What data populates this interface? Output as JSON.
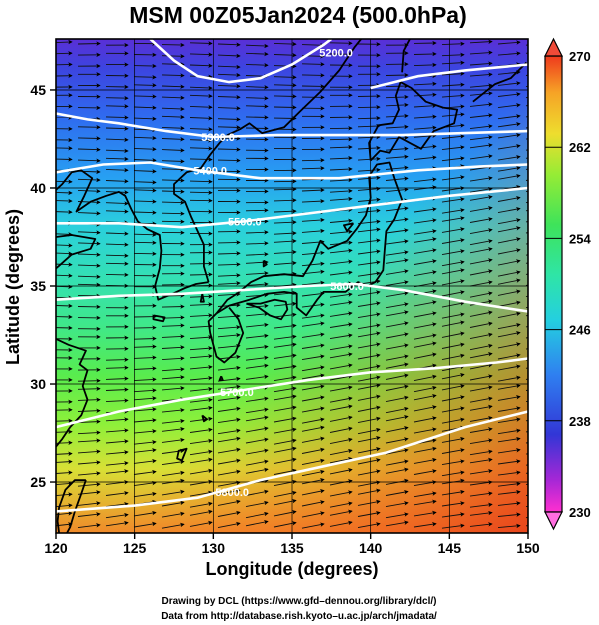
{
  "title": "MSM 00Z05Jan2024 (500.0hPa)",
  "xlabel": "Longitude (degrees)",
  "ylabel": "Latitude  (degrees)",
  "footer": {
    "line1": "Drawing by DCL (https://www.gfd–dennou.org/library/dcl/)",
    "line2": "Data from http://database.rish.kyoto–u.ac.jp/arch/jmadata/"
  },
  "chart_data": {
    "type": "heatmap",
    "xlim": [
      120,
      150
    ],
    "ylim": [
      22.4,
      47.6
    ],
    "x_ticks": [
      "120",
      "125",
      "130",
      "135",
      "140",
      "145",
      "150"
    ],
    "y_ticks": [
      "25",
      "30",
      "35",
      "40",
      "45"
    ],
    "colorbar": {
      "range": [
        230,
        270
      ],
      "tick_labels": [
        "270",
        "262",
        "254",
        "246",
        "238",
        "230"
      ]
    },
    "contours": [
      {
        "label": "5200.0",
        "points": [
          [
            126.0,
            47.6
          ],
          [
            127.5,
            46.5
          ],
          [
            129.0,
            45.7
          ],
          [
            131.0,
            45.4
          ],
          [
            133.0,
            45.6
          ],
          [
            135.0,
            46.3
          ],
          [
            137.0,
            47.3
          ],
          [
            137.5,
            47.6
          ]
        ],
        "label_at": [
          137.8,
          46.9
        ]
      },
      {
        "label": "5200.0",
        "points": [
          [
            140.0,
            45.1
          ],
          [
            143.0,
            45.7
          ],
          [
            146.0,
            46.0
          ],
          [
            150.0,
            46.3
          ]
        ]
      },
      {
        "label": "5300.0",
        "points": [
          [
            120.0,
            43.8
          ],
          [
            122.0,
            43.5
          ],
          [
            124.0,
            43.3
          ],
          [
            127.0,
            42.9
          ],
          [
            130.0,
            42.6
          ],
          [
            134.0,
            42.7
          ],
          [
            138.0,
            42.7
          ],
          [
            142.0,
            42.7
          ],
          [
            146.0,
            42.8
          ],
          [
            150.0,
            42.9
          ]
        ],
        "label_at": [
          130.3,
          42.6
        ]
      },
      {
        "label": "5400.0",
        "points": [
          [
            120.0,
            40.8
          ],
          [
            123.0,
            41.2
          ],
          [
            126.0,
            41.3
          ],
          [
            129.0,
            40.9
          ],
          [
            133.0,
            40.5
          ],
          [
            138.0,
            40.5
          ],
          [
            143.0,
            40.9
          ],
          [
            147.0,
            41.1
          ],
          [
            150.0,
            41.2
          ]
        ],
        "label_at": [
          129.8,
          40.9
        ]
      },
      {
        "label": "5500.0",
        "points": [
          [
            120.0,
            38.2
          ],
          [
            124.0,
            38.2
          ],
          [
            128.0,
            38.0
          ],
          [
            132.0,
            38.3
          ],
          [
            136.0,
            38.7
          ],
          [
            140.0,
            39.1
          ],
          [
            145.0,
            39.6
          ],
          [
            150.0,
            40.0
          ]
        ],
        "label_at": [
          132.0,
          38.3
        ]
      },
      {
        "label": "5600.0",
        "points": [
          [
            120.0,
            34.3
          ],
          [
            124.0,
            34.5
          ],
          [
            128.0,
            34.6
          ],
          [
            132.0,
            34.8
          ],
          [
            136.0,
            35.0
          ],
          [
            139.0,
            35.1
          ],
          [
            142.0,
            34.8
          ],
          [
            146.0,
            34.2
          ],
          [
            150.0,
            33.7
          ]
        ],
        "label_at": [
          138.5,
          35.0
        ]
      },
      {
        "label": "5700.0",
        "points": [
          [
            120.0,
            27.8
          ],
          [
            124.0,
            28.6
          ],
          [
            128.0,
            29.2
          ],
          [
            132.0,
            29.7
          ],
          [
            136.0,
            30.2
          ],
          [
            140.0,
            30.6
          ],
          [
            144.0,
            30.8
          ],
          [
            148.0,
            31.1
          ],
          [
            150.0,
            31.3
          ]
        ],
        "label_at": [
          131.5,
          29.6
        ]
      },
      {
        "label": "5800.0",
        "points": [
          [
            120.0,
            23.5
          ],
          [
            125.0,
            23.8
          ],
          [
            129.0,
            24.2
          ],
          [
            133.0,
            25.1
          ],
          [
            137.0,
            25.8
          ],
          [
            141.0,
            26.5
          ],
          [
            146.0,
            27.8
          ],
          [
            150.0,
            28.6
          ]
        ],
        "label_at": [
          131.2,
          24.5
        ]
      }
    ],
    "coastline": [
      [
        [
          130.2,
          33.6
        ],
        [
          131.0,
          34.0
        ],
        [
          132.3,
          34.3
        ],
        [
          133.4,
          34.6
        ],
        [
          134.5,
          34.7
        ],
        [
          135.3,
          34.6
        ],
        [
          135.3,
          33.9
        ],
        [
          135.9,
          33.5
        ],
        [
          136.6,
          34.3
        ],
        [
          137.0,
          34.7
        ],
        [
          138.4,
          34.7
        ],
        [
          139.2,
          35.2
        ],
        [
          139.8,
          35.0
        ],
        [
          140.3,
          35.2
        ],
        [
          140.8,
          35.8
        ],
        [
          140.9,
          36.8
        ],
        [
          141.0,
          37.8
        ],
        [
          141.5,
          38.4
        ],
        [
          142.0,
          39.4
        ],
        [
          141.5,
          40.5
        ],
        [
          141.2,
          41.3
        ],
        [
          140.4,
          41.2
        ],
        [
          139.9,
          40.6
        ],
        [
          140.0,
          39.5
        ],
        [
          139.7,
          38.6
        ],
        [
          139.1,
          37.9
        ],
        [
          138.5,
          37.3
        ],
        [
          137.3,
          36.9
        ],
        [
          136.8,
          37.3
        ],
        [
          136.3,
          36.3
        ],
        [
          135.7,
          35.5
        ],
        [
          134.5,
          35.6
        ],
        [
          133.2,
          35.5
        ],
        [
          132.4,
          35.2
        ],
        [
          131.5,
          34.6
        ],
        [
          130.9,
          34.3
        ],
        [
          130.2,
          33.6
        ]
      ],
      [
        [
          130.2,
          33.6
        ],
        [
          129.7,
          33.2
        ],
        [
          129.8,
          32.6
        ],
        [
          130.2,
          31.4
        ],
        [
          130.7,
          31.1
        ],
        [
          131.4,
          31.6
        ],
        [
          131.9,
          32.6
        ],
        [
          131.6,
          33.3
        ],
        [
          131.0,
          33.9
        ]
      ],
      [
        [
          132.1,
          34.1
        ],
        [
          132.9,
          33.9
        ],
        [
          133.6,
          33.5
        ],
        [
          134.3,
          33.3
        ],
        [
          134.7,
          33.8
        ],
        [
          134.6,
          34.2
        ],
        [
          133.9,
          34.3
        ],
        [
          133.0,
          34.1
        ],
        [
          132.1,
          34.1
        ]
      ],
      [
        [
          140.0,
          41.4
        ],
        [
          140.6,
          41.9
        ],
        [
          141.2,
          41.8
        ],
        [
          141.8,
          42.6
        ],
        [
          143.2,
          42.0
        ],
        [
          144.0,
          42.9
        ],
        [
          145.3,
          43.3
        ],
        [
          145.5,
          44.0
        ],
        [
          144.6,
          44.1
        ],
        [
          143.5,
          44.4
        ],
        [
          142.6,
          45.1
        ],
        [
          141.9,
          45.4
        ],
        [
          141.6,
          44.7
        ],
        [
          141.8,
          44.0
        ],
        [
          141.4,
          43.3
        ],
        [
          140.5,
          43.2
        ],
        [
          139.9,
          42.3
        ],
        [
          140.0,
          41.4
        ]
      ],
      [
        [
          142.0,
          45.9
        ],
        [
          142.1,
          47.0
        ],
        [
          142.5,
          47.6
        ]
      ],
      [
        [
          146.5,
          44.4
        ],
        [
          147.9,
          45.3
        ],
        [
          148.9,
          45.6
        ],
        [
          149.9,
          46.4
        ]
      ],
      [
        [
          129.7,
          35.2
        ],
        [
          129.4,
          36.0
        ],
        [
          129.4,
          37.1
        ],
        [
          129.0,
          37.8
        ],
        [
          128.6,
          38.5
        ],
        [
          128.2,
          39.3
        ],
        [
          127.5,
          39.7
        ],
        [
          127.5,
          40.2
        ],
        [
          128.3,
          40.8
        ],
        [
          129.2,
          41.0
        ],
        [
          129.8,
          41.7
        ],
        [
          130.4,
          42.3
        ],
        [
          130.9,
          42.7
        ],
        [
          131.7,
          43.0
        ],
        [
          132.3,
          43.3
        ],
        [
          133.1,
          42.8
        ],
        [
          134.5,
          43.1
        ],
        [
          135.5,
          43.9
        ],
        [
          136.8,
          44.9
        ],
        [
          138.0,
          46.0
        ],
        [
          139.0,
          47.2
        ],
        [
          139.4,
          47.6
        ]
      ],
      [
        [
          129.7,
          35.2
        ],
        [
          128.9,
          35.1
        ],
        [
          128.2,
          34.9
        ],
        [
          127.4,
          34.6
        ],
        [
          126.5,
          34.3
        ],
        [
          126.3,
          35.0
        ],
        [
          126.6,
          35.9
        ],
        [
          126.7,
          36.8
        ],
        [
          126.6,
          37.6
        ],
        [
          125.8,
          37.9
        ],
        [
          125.2,
          38.3
        ],
        [
          124.8,
          38.9
        ],
        [
          124.4,
          39.6
        ],
        [
          124.0,
          39.8
        ],
        [
          123.2,
          39.6
        ],
        [
          122.2,
          39.3
        ],
        [
          121.3,
          38.8
        ],
        [
          121.8,
          39.6
        ],
        [
          122.3,
          40.5
        ],
        [
          121.6,
          40.9
        ],
        [
          121.0,
          40.8
        ],
        [
          120.4,
          40.2
        ],
        [
          120.0,
          39.9
        ]
      ],
      [
        [
          120.0,
          37.5
        ],
        [
          121.0,
          37.6
        ],
        [
          122.5,
          37.4
        ],
        [
          122.2,
          36.9
        ],
        [
          121.0,
          36.6
        ],
        [
          120.3,
          36.1
        ],
        [
          120.0,
          35.9
        ]
      ],
      [
        [
          120.0,
          32.3
        ],
        [
          120.8,
          32.0
        ],
        [
          121.9,
          31.7
        ],
        [
          121.5,
          31.0
        ],
        [
          122.0,
          30.7
        ],
        [
          121.7,
          29.9
        ],
        [
          122.0,
          29.2
        ],
        [
          121.6,
          28.4
        ],
        [
          120.9,
          27.8
        ],
        [
          120.4,
          27.2
        ],
        [
          120.0,
          26.8
        ]
      ],
      [
        [
          121.9,
          25.1
        ],
        [
          121.6,
          24.4
        ],
        [
          121.2,
          23.5
        ],
        [
          120.9,
          22.7
        ],
        [
          120.7,
          22.4
        ]
      ],
      [
        [
          121.9,
          25.1
        ],
        [
          121.2,
          25.1
        ],
        [
          120.6,
          24.6
        ],
        [
          120.2,
          23.7
        ],
        [
          120.1,
          23.0
        ],
        [
          120.2,
          22.4
        ]
      ],
      [
        [
          128.0,
          26.1
        ],
        [
          128.3,
          26.7
        ],
        [
          127.8,
          26.6
        ],
        [
          127.7,
          26.2
        ],
        [
          128.0,
          26.1
        ]
      ],
      [
        [
          130.5,
          30.4
        ],
        [
          130.6,
          30.2
        ],
        [
          130.4,
          30.2
        ],
        [
          130.5,
          30.4
        ]
      ],
      [
        [
          129.3,
          28.4
        ],
        [
          129.6,
          28.2
        ],
        [
          129.4,
          28.1
        ],
        [
          129.3,
          28.4
        ]
      ],
      [
        [
          138.9,
          38.2
        ],
        [
          138.5,
          37.8
        ],
        [
          138.3,
          38.1
        ],
        [
          138.9,
          38.2
        ]
      ],
      [
        [
          133.2,
          36.3
        ],
        [
          133.4,
          36.1
        ],
        [
          133.2,
          36.0
        ],
        [
          133.2,
          36.3
        ]
      ],
      [
        [
          129.3,
          34.6
        ],
        [
          129.4,
          34.2
        ],
        [
          129.2,
          34.2
        ],
        [
          129.3,
          34.6
        ]
      ],
      [
        [
          126.2,
          33.5
        ],
        [
          126.9,
          33.4
        ],
        [
          126.8,
          33.2
        ],
        [
          126.2,
          33.3
        ],
        [
          126.2,
          33.5
        ]
      ]
    ]
  }
}
